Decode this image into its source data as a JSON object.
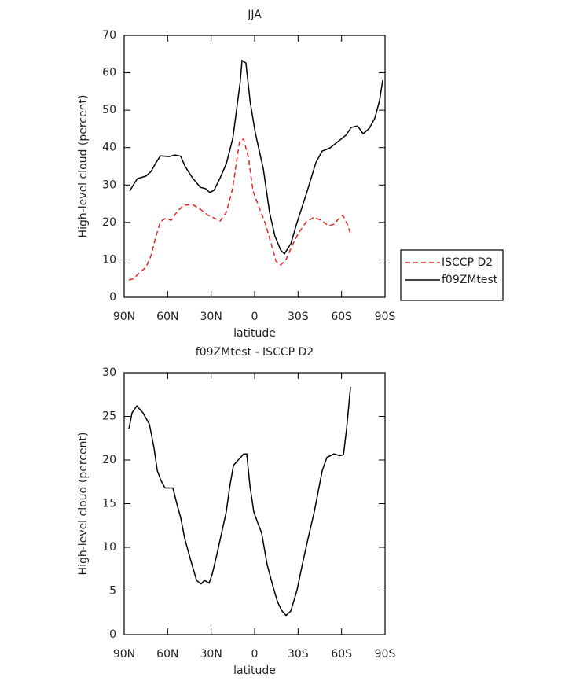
{
  "chart_data": [
    {
      "type": "line",
      "title": "JJA",
      "xlabel": "latitude",
      "ylabel": "High-level cloud (percent)",
      "xlim": [
        90,
        -90
      ],
      "ylim": [
        0,
        70
      ],
      "xticks": [
        {
          "value": 90,
          "label": "90N"
        },
        {
          "value": 60,
          "label": "60N"
        },
        {
          "value": 30,
          "label": "30N"
        },
        0,
        {
          "value": -30,
          "label": "30S"
        },
        {
          "value": -60,
          "label": "60S"
        },
        {
          "value": -90,
          "label": "90S"
        }
      ],
      "yticks": [
        0,
        10,
        20,
        30,
        40,
        50,
        60,
        70
      ],
      "legend": "outside-right",
      "series": [
        {
          "name": "ISCCP D2",
          "color": "#e8231f",
          "dash": true,
          "x": [
            86.7,
            83.5,
            79,
            75,
            71.5,
            68,
            65,
            61.8,
            57.5,
            53,
            48.8,
            42.8,
            37.4,
            32,
            23.8,
            19.5,
            15.2,
            10.4,
            7.6,
            4.3,
            1.1,
            -3.3,
            -7.6,
            -12,
            -14.7,
            -17.9,
            -21.7,
            -26,
            -30.4,
            -35.8,
            -41.2,
            -45.6,
            -51,
            -54.8,
            -58,
            -60.8,
            -64,
            -66.7
          ],
          "values": [
            4.6,
            5,
            6.7,
            8,
            11.1,
            16.4,
            20.2,
            21,
            20.6,
            23.1,
            24.6,
            24.8,
            23.5,
            21.9,
            20.4,
            22.7,
            29,
            41.6,
            42.3,
            37.4,
            28.4,
            23.8,
            19.5,
            13.5,
            9.7,
            8.6,
            10.1,
            13.9,
            17.2,
            20.2,
            21.4,
            20.6,
            19.1,
            19.5,
            21,
            21.9,
            19.5,
            16.4
          ]
        },
        {
          "name": "f09ZMtest",
          "color": "#000000",
          "dash": false,
          "x": [
            86.2,
            81,
            75,
            71.5,
            68,
            65,
            59,
            55,
            51,
            48,
            43,
            37.5,
            33.6,
            31,
            28,
            24,
            19.5,
            15,
            10,
            8.7,
            6,
            3,
            -0.6,
            -6,
            -10.3,
            -14,
            -18,
            -20.6,
            -25,
            -29.3,
            -36,
            -42.3,
            -46.7,
            -52,
            -57.5,
            -63,
            -66.7,
            -71,
            -74.9,
            -79.2,
            -83,
            -86.2,
            -88.4
          ],
          "values": [
            28.4,
            31.7,
            32.4,
            33.6,
            36,
            37.8,
            37.6,
            38,
            37.7,
            35,
            32,
            29.4,
            29,
            28,
            28.6,
            31.7,
            35.7,
            42.5,
            57.4,
            63.3,
            62.6,
            52,
            43.7,
            34.3,
            22.7,
            16.4,
            12.6,
            11.6,
            14.3,
            20,
            28,
            36,
            39.1,
            39.9,
            41.6,
            43.3,
            45.4,
            45.8,
            43.7,
            45.2,
            47.9,
            52.6,
            58
          ]
        }
      ]
    },
    {
      "type": "line",
      "title": "f09ZMtest - ISCCP D2",
      "xlabel": "latitude",
      "ylabel": "High-level cloud (percent)",
      "xlim": [
        90,
        -90
      ],
      "ylim": [
        0,
        30
      ],
      "xticks": [
        {
          "value": 90,
          "label": "90N"
        },
        {
          "value": 60,
          "label": "60N"
        },
        {
          "value": 30,
          "label": "30N"
        },
        0,
        {
          "value": -30,
          "label": "30S"
        },
        {
          "value": -60,
          "label": "60S"
        },
        {
          "value": -90,
          "label": "90S"
        }
      ],
      "yticks": [
        0,
        5,
        10,
        15,
        20,
        25,
        30
      ],
      "color": "#000000",
      "x": [
        86.7,
        84.6,
        81.3,
        77,
        72.6,
        69.4,
        67.2,
        64.5,
        61.8,
        56.4,
        53.7,
        51,
        48.2,
        44.4,
        40,
        36.9,
        34.7,
        31.4,
        29.3,
        26,
        22.8,
        19.5,
        17.3,
        14.6,
        9.7,
        7.6,
        5.4,
        3.2,
        0.5,
        -4.9,
        -8.7,
        -12.5,
        -15.7,
        -18.5,
        -21.7,
        -25,
        -29.3,
        -33.1,
        -37.4,
        -41.2,
        -46.7,
        -49.9,
        -54.8,
        -58.6,
        -61.3,
        -63.5,
        -66.2
      ],
      "values": [
        23.6,
        25.4,
        26.2,
        25.4,
        24.1,
        21.4,
        18.8,
        17.6,
        16.8,
        16.8,
        15,
        13.4,
        11,
        8.7,
        6.2,
        5.8,
        6.2,
        5.9,
        6.9,
        9.2,
        11.6,
        14.1,
        16.8,
        19.4,
        20.3,
        20.7,
        20.7,
        17,
        14,
        11.6,
        8,
        5.6,
        3.8,
        2.8,
        2.2,
        2.7,
        5.1,
        8.2,
        11.4,
        14.1,
        18.8,
        20.3,
        20.7,
        20.5,
        20.6,
        23.6,
        28.4
      ]
    }
  ]
}
